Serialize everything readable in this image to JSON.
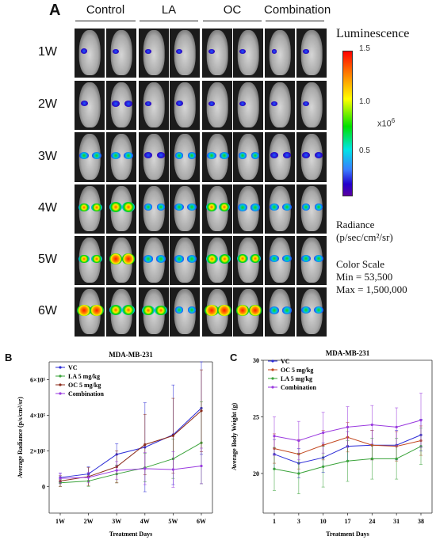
{
  "panel_a": {
    "letter": "A",
    "groups": [
      "Control",
      "LA",
      "OC",
      "Combination"
    ],
    "rows": [
      "1W",
      "2W",
      "3W",
      "4W",
      "5W",
      "6W"
    ],
    "legend_title": "Luminescence",
    "colorbar_ticks": [
      "1.5",
      "1.0",
      "0.5"
    ],
    "colorbar_multiplier": "x10",
    "colorbar_exponent": "6",
    "radiance_line1": "Radiance",
    "radiance_line2": "(p/sec/cm²/sr)",
    "colorscale_title": "Color Scale",
    "min_label": "Min = 53,500",
    "max_label": "Max = 1,500,000"
  },
  "chart_data": [
    {
      "type": "line",
      "panel": "B",
      "title": "MDA-MB-231",
      "xlabel": "Treatment Days",
      "ylabel": "Average Radiance (p/s/cm²/sr)",
      "categories": [
        "1W",
        "2W",
        "3W",
        "4W",
        "5W",
        "6W"
      ],
      "yticks": [
        "0",
        "2×10⁵",
        "4×10⁵",
        "6×10⁵"
      ],
      "ylim": [
        -150000,
        700000
      ],
      "series": [
        {
          "name": "VC",
          "color": "#2b2bd6",
          "values": [
            50000,
            70000,
            180000,
            220000,
            290000,
            440000
          ],
          "err": [
            25000,
            40000,
            60000,
            250000,
            280000,
            260000
          ]
        },
        {
          "name": "LA 5 mg/kg",
          "color": "#3aa33a",
          "values": [
            20000,
            30000,
            70000,
            105000,
            155000,
            245000
          ],
          "err": [
            20000,
            30000,
            50000,
            80000,
            110000,
            230000
          ]
        },
        {
          "name": "OC 5 mg/kg",
          "color": "#8b2a1a",
          "values": [
            30000,
            55000,
            110000,
            235000,
            285000,
            425000
          ],
          "err": [
            30000,
            50000,
            90000,
            170000,
            210000,
            230000
          ]
        },
        {
          "name": "Combination",
          "color": "#9a3adf",
          "values": [
            45000,
            50000,
            90000,
            100000,
            95000,
            115000
          ],
          "err": [
            30000,
            30000,
            50000,
            90000,
            100000,
            100000
          ]
        }
      ]
    },
    {
      "type": "line",
      "panel": "C",
      "title": "MDA-MB-231",
      "xlabel": "Treatment Days",
      "ylabel": "Average Body Weight (g)",
      "categories": [
        "1",
        "3",
        "10",
        "17",
        "24",
        "31",
        "38"
      ],
      "yticks": [
        "20",
        "25",
        "30"
      ],
      "ylim": [
        16.5,
        30
      ],
      "series": [
        {
          "name": "VC",
          "color": "#2b2bd6",
          "values": [
            21.7,
            20.9,
            21.4,
            22.4,
            22.5,
            22.5,
            23.4
          ],
          "err": [
            1.3,
            1.3,
            1.3,
            1.3,
            1.3,
            1.3,
            1.4
          ]
        },
        {
          "name": "OC 5 mg/kg",
          "color": "#c2461e",
          "values": [
            22.2,
            21.7,
            22.5,
            23.2,
            22.5,
            22.4,
            22.9
          ],
          "err": [
            1.3,
            1.3,
            1.3,
            1.3,
            1.3,
            1.3,
            1.3
          ]
        },
        {
          "name": "LA 5 mg/kg",
          "color": "#3aa33a",
          "values": [
            20.4,
            20.0,
            20.6,
            21.1,
            21.3,
            21.3,
            22.4
          ],
          "err": [
            1.9,
            1.8,
            1.8,
            1.8,
            1.8,
            1.8,
            1.6
          ]
        },
        {
          "name": "Combination",
          "color": "#9a3adf",
          "values": [
            23.3,
            22.9,
            23.6,
            24.1,
            24.3,
            24.1,
            24.7
          ],
          "err": [
            1.7,
            1.7,
            1.8,
            1.8,
            1.7,
            1.7,
            2.4
          ]
        }
      ]
    }
  ]
}
